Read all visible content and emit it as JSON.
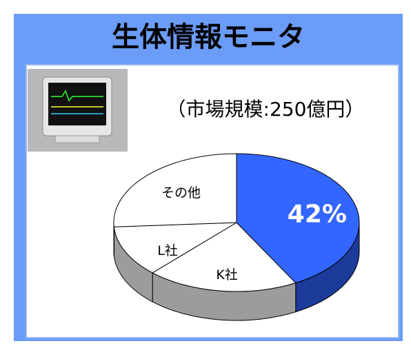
{
  "chart_data": {
    "type": "pie",
    "title": "生体情報モニタ",
    "subtitle": "（市場規模:250億円）",
    "categories": [
      null,
      "K社",
      "L社",
      "その他"
    ],
    "values": [
      42,
      20,
      12,
      26
    ],
    "value_labels": [
      "42%",
      null,
      null,
      null
    ],
    "colors": [
      "#3366ff",
      "#ffffff",
      "#ffffff",
      "#ffffff"
    ]
  }
}
